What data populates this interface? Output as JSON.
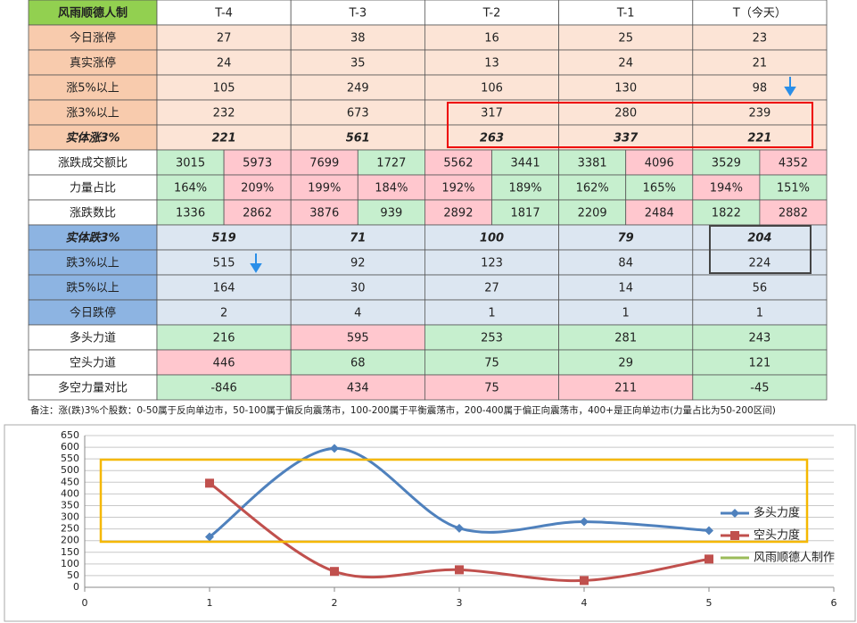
{
  "table": {
    "header": [
      "风雨顺德人制",
      "T-4",
      "T-3",
      "T-2",
      "T-1",
      "T（今天）"
    ],
    "rows": [
      {
        "label": "今日涨停",
        "cells": [
          "27",
          "38",
          "16",
          "25",
          "23"
        ]
      },
      {
        "label": "真实涨停",
        "cells": [
          "24",
          "35",
          "13",
          "24",
          "21"
        ]
      },
      {
        "label": "涨5%以上",
        "cells": [
          "105",
          "249",
          "106",
          "130",
          "98"
        ]
      },
      {
        "label": "涨3%以上",
        "cells": [
          "232",
          "673",
          "317",
          "280",
          "239"
        ]
      },
      {
        "label": "实体涨3%",
        "cells": [
          "221",
          "561",
          "263",
          "337",
          "221"
        ]
      },
      {
        "label": "涨跌成交额比",
        "cells": [
          "3015",
          "5973",
          "7699",
          "1727",
          "5562",
          "3441",
          "3381",
          "4096",
          "3529",
          "4352"
        ]
      },
      {
        "label": "力量占比",
        "cells": [
          "164%",
          "209%",
          "199%",
          "184%",
          "192%",
          "189%",
          "162%",
          "165%",
          "194%",
          "151%"
        ]
      },
      {
        "label": "涨跌数比",
        "cells": [
          "1336",
          "2862",
          "3876",
          "939",
          "2892",
          "1817",
          "2209",
          "2484",
          "1822",
          "2882"
        ]
      },
      {
        "label": "实体跌3%",
        "cells": [
          "519",
          "71",
          "100",
          "79",
          "204"
        ]
      },
      {
        "label": "跌3%以上",
        "cells": [
          "515",
          "92",
          "123",
          "84",
          "224"
        ]
      },
      {
        "label": "跌5%以上",
        "cells": [
          "164",
          "30",
          "27",
          "14",
          "56"
        ]
      },
      {
        "label": "今日跌停",
        "cells": [
          "2",
          "4",
          "1",
          "1",
          "1"
        ]
      },
      {
        "label": "多头力道",
        "cells": [
          "216",
          "595",
          "253",
          "281",
          "243"
        ]
      },
      {
        "label": "空头力道",
        "cells": [
          "446",
          "68",
          "75",
          "29",
          "121"
        ]
      },
      {
        "label": "多空力量对比",
        "cells": [
          "-846",
          "434",
          "75",
          "211",
          "-45"
        ]
      }
    ]
  },
  "note": "备注：涨(跌)3%个股数：0-50属于反向单边市，50-100属于偏反向震荡市，100-200属于平衡震荡市，200-400属于偏正向震荡市，400+是正向单边市(力量占比为50-200区间)",
  "chart_data": {
    "type": "line",
    "x": [
      1,
      2,
      3,
      4,
      5
    ],
    "series": [
      {
        "name": "多头力度",
        "color": "#4f81bd",
        "values": [
          216,
          595,
          253,
          281,
          243
        ]
      },
      {
        "name": "空头力度",
        "color": "#c0504d",
        "values": [
          446,
          68,
          75,
          29,
          121
        ]
      },
      {
        "name": "风雨顺德人制作",
        "color": "#9bbb59",
        "values": [
          null,
          null,
          null,
          null,
          null
        ]
      }
    ],
    "xlim": [
      0,
      6
    ],
    "xticks": [
      0,
      1,
      2,
      3,
      4,
      5,
      6
    ],
    "ylim": [
      0,
      650
    ],
    "yticks": [
      0,
      50,
      100,
      150,
      200,
      250,
      300,
      350,
      400,
      450,
      500,
      550,
      600,
      650
    ],
    "grid": true,
    "smooth": true,
    "legend": "right"
  }
}
